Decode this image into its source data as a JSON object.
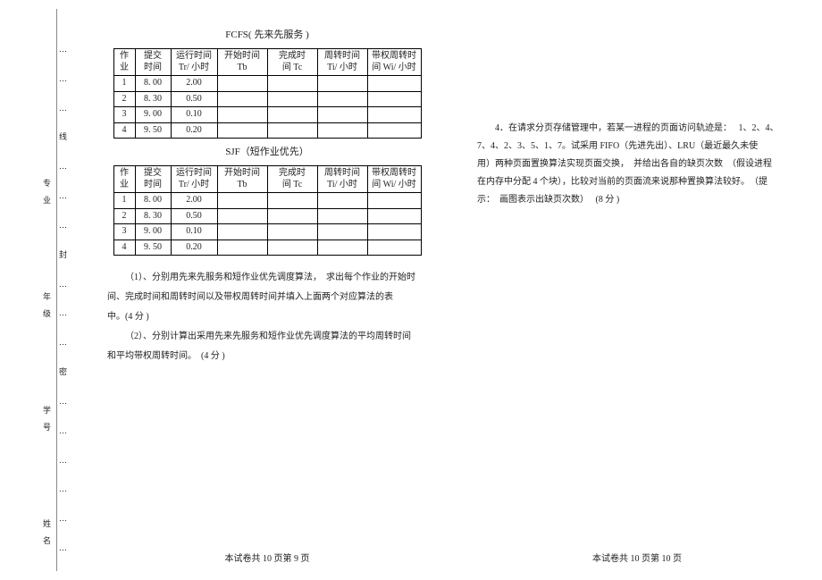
{
  "margin": {
    "outer": [
      "…",
      "…",
      "…",
      "线",
      "…",
      "…",
      "…",
      "封",
      "…",
      "…",
      "…",
      "密",
      "…",
      "…",
      "…",
      "…",
      "…",
      "…"
    ],
    "inner": [
      "专 业",
      "年 级",
      "学 号",
      "姓 名"
    ]
  },
  "fcfs_title": "FCFS( 先来先服务 )",
  "sjf_title": "SJF（短作业优先）",
  "headers": {
    "job1": "作",
    "job2": "业",
    "submit1": "提交",
    "submit2": "时间",
    "run1": "运行时间",
    "run2": "Tr/ 小时",
    "start1": "开始时间",
    "start2": "Tb",
    "finish1": "完成时",
    "finish2": "间 Tc",
    "turn1": "周转时间",
    "turn2": "Ti/ 小时",
    "wturn1": "带权周转时",
    "wturn2": "间 Wi/ 小时"
  },
  "rows": [
    {
      "idx": "1",
      "submit": "8. 00",
      "run": "2.00"
    },
    {
      "idx": "2",
      "submit": "8. 30",
      "run": "0.50"
    },
    {
      "idx": "3",
      "submit": "9. 00",
      "run": "0.10"
    },
    {
      "idx": "4",
      "submit": "9. 50",
      "run": "0.20"
    }
  ],
  "q1_p1": "（1）、分别用先来先服务和短作业优先调度算法，　求出每个作业的开始时",
  "q1_p2": "间、完成时间和周转时间以及带权周转时间并填入上面两个对应算法的表",
  "q1_p3": "中。(4 分 )",
  "q2_p1": "（2）、分别计算出采用先来先服务和短作业优先调度算法的平均周转时间",
  "q2_p2": "和平均带权周转时间。　(4 分 )",
  "q4_l1": "4．在请求分页存储管理中，若某一进程的页面访问轨迹是：　 1、2、4、",
  "q4_l2": "7、4、2、3、5、1、7。试采用 FIFO（先进先出）、LRU（最近最久未使",
  "q4_l3": "用）两种页面置换算法实现页面交换，　并给出各自的缺页次数　（假设进程",
  "q4_l4": "在内存中分配  4 个块），比较对当前的页面流来说那种置换算法较好。　（提",
  "q4_l5": "示：　画图表示出缺页次数）　 (8 分 )",
  "footer_left": "本试卷共  10 页第 9 页",
  "footer_right": "本试卷共  10 页第 10 页"
}
